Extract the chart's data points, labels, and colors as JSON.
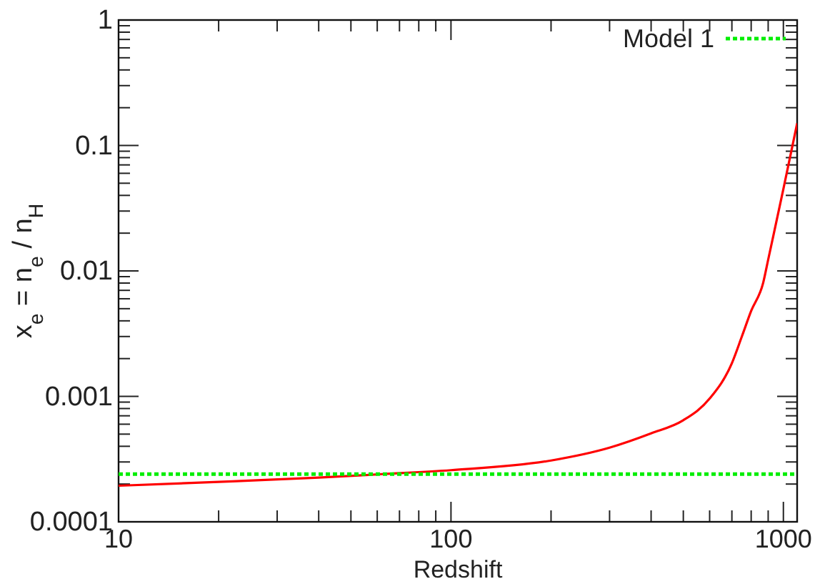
{
  "chart_data": {
    "type": "line",
    "xlabel": "Redshift",
    "ylabel": "x$_{e}$ = n$_{e}$ / n$_{H}$",
    "log": "xy",
    "xlim": [
      10,
      1100
    ],
    "ylim": [
      0.0001,
      1
    ],
    "xticks": [
      10,
      {
        "value": 20,
        "label": null
      },
      {
        "value": 30,
        "label": null
      },
      {
        "value": 40,
        "label": null
      },
      {
        "value": 50,
        "label": null
      },
      {
        "value": 60,
        "label": null
      },
      {
        "value": 70,
        "label": null
      },
      {
        "value": 80,
        "label": null
      },
      {
        "value": 90,
        "label": null
      },
      100,
      {
        "value": 200,
        "label": null
      },
      {
        "value": 300,
        "label": null
      },
      {
        "value": 400,
        "label": null
      },
      {
        "value": 500,
        "label": null
      },
      {
        "value": 600,
        "label": null
      },
      {
        "value": 700,
        "label": null
      },
      {
        "value": 800,
        "label": null
      },
      {
        "value": 900,
        "label": null
      },
      1000
    ],
    "yticks": [
      0.0001,
      {
        "value": 0.0002,
        "label": null
      },
      {
        "value": 0.0003,
        "label": null
      },
      {
        "value": 0.0004,
        "label": null
      },
      {
        "value": 0.0005,
        "label": null
      },
      {
        "value": 0.0006,
        "label": null
      },
      {
        "value": 0.0007,
        "label": null
      },
      {
        "value": 0.0008,
        "label": null
      },
      {
        "value": 0.0009,
        "label": null
      },
      0.001,
      {
        "value": 0.002,
        "label": null
      },
      {
        "value": 0.003,
        "label": null
      },
      {
        "value": 0.004,
        "label": null
      },
      {
        "value": 0.005,
        "label": null
      },
      {
        "value": 0.006,
        "label": null
      },
      {
        "value": 0.007,
        "label": null
      },
      {
        "value": 0.008,
        "label": null
      },
      {
        "value": 0.009,
        "label": null
      },
      0.01,
      {
        "value": 0.02,
        "label": null
      },
      {
        "value": 0.03,
        "label": null
      },
      {
        "value": 0.04,
        "label": null
      },
      {
        "value": 0.05,
        "label": null
      },
      {
        "value": 0.06,
        "label": null
      },
      {
        "value": 0.07,
        "label": null
      },
      {
        "value": 0.08,
        "label": null
      },
      {
        "value": 0.09,
        "label": null
      },
      0.1,
      {
        "value": 0.2,
        "label": null
      },
      {
        "value": 0.3,
        "label": null
      },
      {
        "value": 0.4,
        "label": null
      },
      {
        "value": 0.5,
        "label": null
      },
      {
        "value": 0.6,
        "label": null
      },
      {
        "value": 0.7,
        "label": null
      },
      {
        "value": 0.8,
        "label": null
      },
      {
        "value": 0.9,
        "label": null
      },
      1
    ],
    "grid": false,
    "legend": "top right",
    "series": [
      {
        "color": "#ff0000",
        "line_style": "solid",
        "x": [
          10,
          20,
          40,
          62,
          100,
          200,
          300,
          400,
          500,
          600,
          700,
          750,
          800,
          870,
          900,
          1000,
          1100
        ],
        "values": [
          0.000194,
          0.000208,
          0.000225,
          0.00024,
          0.000258,
          0.000308,
          0.00039,
          0.000507,
          0.000645,
          0.00096,
          0.00184,
          0.003,
          0.0048,
          0.0081,
          0.0123,
          0.045,
          0.15
        ]
      },
      {
        "name": "Model 1",
        "color": "#00ee00",
        "line_style": "dotted",
        "x": [
          10,
          1100
        ],
        "values": [
          0.00024,
          0.00024
        ]
      }
    ]
  }
}
